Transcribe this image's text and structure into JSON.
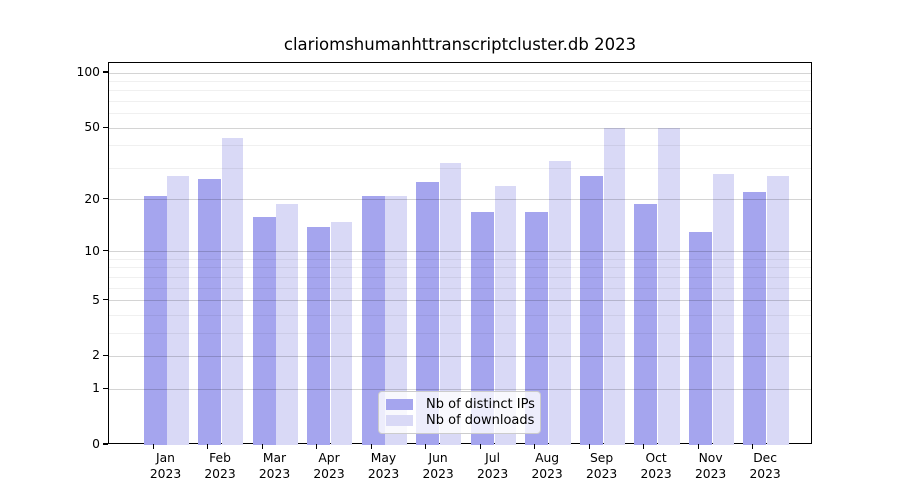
{
  "chart_data": {
    "type": "bar",
    "title": "clariomshumanhttranscriptcluster.db 2023",
    "categories": [
      "Jan",
      "Feb",
      "Mar",
      "Apr",
      "May",
      "Jun",
      "Jul",
      "Aug",
      "Sep",
      "Oct",
      "Nov",
      "Dec"
    ],
    "year": "2023",
    "series": [
      {
        "name": "Nb of distinct IPs",
        "color": "#a5a5ee",
        "values": [
          21,
          26,
          16,
          14,
          21,
          25,
          17,
          17,
          27,
          19,
          13,
          22
        ]
      },
      {
        "name": "Nb of downloads",
        "color": "#d9d9f6",
        "values": [
          27,
          44,
          19,
          15,
          21,
          32,
          24,
          33,
          50,
          50,
          28,
          27
        ]
      }
    ],
    "yscale": "log1p",
    "ylim": [
      0,
      113
    ],
    "yticks": [
      0,
      1,
      2,
      5,
      10,
      20,
      50,
      100
    ],
    "minor_gridlines": [
      3,
      4,
      6,
      7,
      8,
      9,
      30,
      40,
      60,
      70,
      80,
      90
    ],
    "grid": true,
    "legend_position": "bottom-center"
  }
}
